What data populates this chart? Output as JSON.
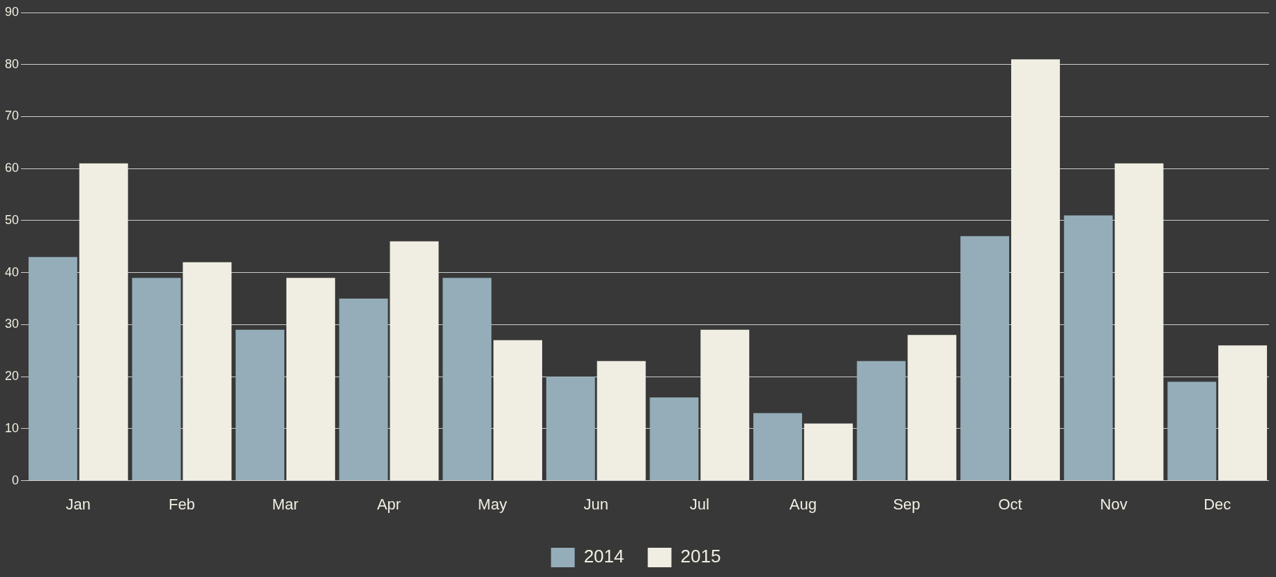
{
  "chart_data": {
    "type": "bar",
    "categories": [
      "Jan",
      "Feb",
      "Mar",
      "Apr",
      "May",
      "Jun",
      "Jul",
      "Aug",
      "Sep",
      "Oct",
      "Nov",
      "Dec"
    ],
    "series": [
      {
        "name": "2014",
        "color": "#94adb9",
        "values": [
          43,
          39,
          29,
          35,
          39,
          20,
          16,
          13,
          23,
          47,
          51,
          19
        ]
      },
      {
        "name": "2015",
        "color": "#f0eee2",
        "values": [
          61,
          42,
          39,
          46,
          27,
          23,
          29,
          11,
          28,
          81,
          61,
          26
        ]
      }
    ],
    "ylim": [
      0,
      90
    ],
    "yticks": [
      0,
      10,
      20,
      30,
      40,
      50,
      60,
      70,
      80,
      90
    ],
    "grid": "y",
    "legend": "bottom"
  }
}
